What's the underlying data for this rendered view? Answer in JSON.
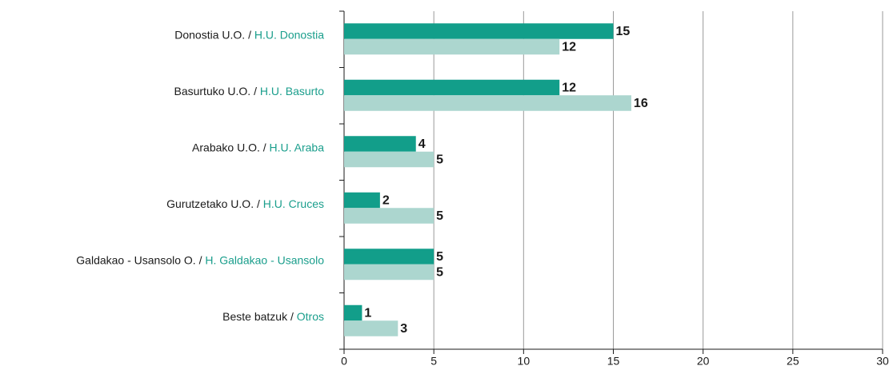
{
  "chart_data": {
    "type": "bar",
    "orientation": "horizontal",
    "categories": [
      "Donostia U.O. / H.U. Donostia",
      "Basurtuko U.O. / H.U. Basurto",
      "Arabako U.O. / H.U. Araba",
      "Gurutzetako U.O. / H.U. Cruces",
      "Galdakao - Usansolo O. / H. Galdakao - Usansolo",
      "Beste batzuk / Otros"
    ],
    "category_highlight_color": "#1a9e8c",
    "series": [
      {
        "color": "#129e8a",
        "values": [
          15,
          12,
          4,
          2,
          5,
          1
        ]
      },
      {
        "color": "#acd6cf",
        "values": [
          12,
          16,
          5,
          5,
          5,
          3
        ]
      }
    ],
    "xlim": [
      0,
      30
    ],
    "xticks": [
      0,
      5,
      10,
      15,
      20,
      25,
      30
    ],
    "grid": true
  }
}
